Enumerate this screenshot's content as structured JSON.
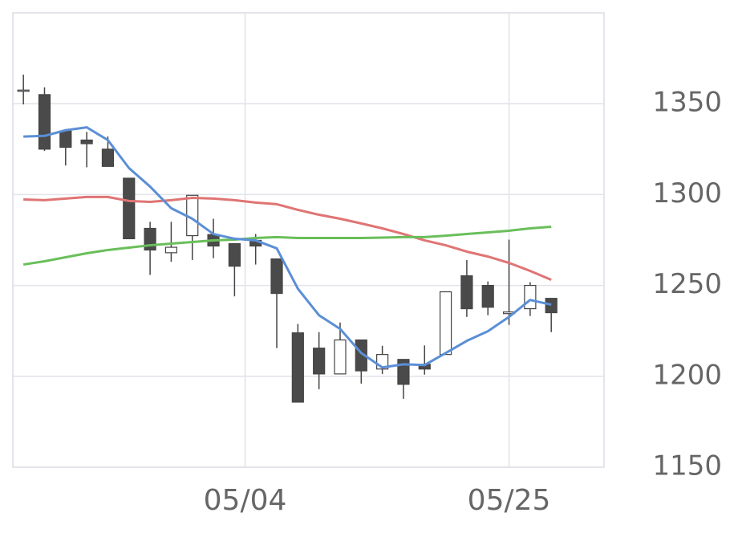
{
  "chart_data": {
    "type": "candlestick",
    "x": [
      0,
      1,
      2,
      3,
      4,
      5,
      6,
      7,
      8,
      9,
      10,
      11,
      12,
      13,
      14,
      15,
      16,
      17,
      18,
      19,
      20,
      21,
      22,
      23,
      24,
      25
    ],
    "open": [
      1357.5,
      1355,
      1335,
      1330,
      1325,
      1309,
      1281.4,
      1268,
      1277.4,
      1278,
      1273,
      1274.8,
      1264.6,
      1223.9,
      1215.5,
      1201.3,
      1220,
      1204,
      1209.3,
      1206.6,
      1212,
      1255.3,
      1250,
      1234.5,
      1237.2,
      1242.9
    ],
    "high": [
      1366,
      1359,
      1335,
      1334.5,
      1332,
      1309,
      1285,
      1285,
      1299.6,
      1286.7,
      1273,
      1278.3,
      1264.6,
      1228.8,
      1224.3,
      1229.6,
      1220,
      1216.8,
      1209.3,
      1217,
      1246.5,
      1264,
      1252.2,
      1275.2,
      1251.8,
      1242.9
    ],
    "low": [
      1349.6,
      1324,
      1316,
      1315,
      1315.5,
      1275.7,
      1255.8,
      1263,
      1264,
      1265,
      1244,
      1261.5,
      1215.5,
      1185.8,
      1192.9,
      1201.3,
      1196,
      1201.3,
      1187.6,
      1200.9,
      1212,
      1232.7,
      1233.6,
      1228.3,
      1233.2,
      1224.3
    ],
    "close": [
      1357.5,
      1325,
      1326,
      1328,
      1315.5,
      1275.7,
      1269.5,
      1271,
      1299.6,
      1271.7,
      1260.6,
      1271.7,
      1245.6,
      1185.8,
      1201.3,
      1220,
      1203,
      1212,
      1195.6,
      1204,
      1246.5,
      1237.2,
      1238,
      1235.4,
      1250,
      1235
    ],
    "up_color": "#ffffff",
    "down_color": "#4a4a4a",
    "series": [
      {
        "color": "#e07474",
        "values": [
          1297.3,
          1296.9,
          1297.8,
          1298.7,
          1298.7,
          1296.5,
          1296,
          1296.9,
          1298.2,
          1297.8,
          1296.9,
          1295.6,
          1294.7,
          1291.6,
          1288.9,
          1286.7,
          1284.1,
          1281.4,
          1278.3,
          1274.8,
          1272.1,
          1268.6,
          1265.9,
          1262.4,
          1258,
          1253.1
        ]
      },
      {
        "color": "#6abf5a",
        "values": [
          1261.5,
          1263.3,
          1265.5,
          1267.7,
          1269.5,
          1270.8,
          1272.1,
          1273,
          1273.9,
          1274.8,
          1275.2,
          1276.1,
          1276.6,
          1276.1,
          1276.1,
          1276.1,
          1276.1,
          1276.3,
          1276.6,
          1276.6,
          1277.4,
          1278.3,
          1279.2,
          1280.1,
          1281.4,
          1282.3
        ]
      },
      {
        "color": "#5b8fd6",
        "values": [
          1331.9,
          1332.3,
          1335.4,
          1337,
          1330,
          1314.6,
          1304.4,
          1292.5,
          1286.7,
          1278.3,
          1275.7,
          1274.8,
          1270.4,
          1248.2,
          1233.6,
          1226.1,
          1212.8,
          1204.9,
          1206.6,
          1206.2,
          1212.8,
          1219.5,
          1224.8,
          1232.7,
          1242,
          1239.4
        ]
      }
    ],
    "xlim": [
      -0.5,
      27.5
    ],
    "xticks": [
      {
        "value": 10.5,
        "label": "05/04"
      },
      {
        "value": 23,
        "label": "05/25"
      }
    ],
    "ylim": [
      1150,
      1400
    ],
    "yticks": [
      1150,
      1200,
      1250,
      1300,
      1350
    ],
    "grid": true
  }
}
